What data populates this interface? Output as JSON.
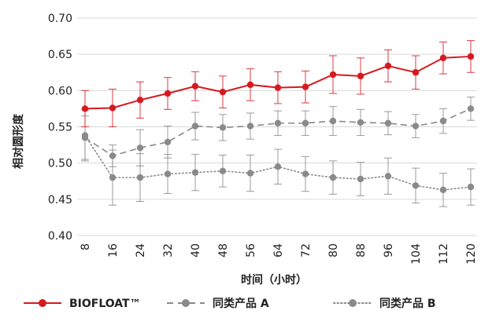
{
  "chart_data": {
    "type": "line",
    "title": "",
    "xlabel": "时间（小时）",
    "ylabel": "相对圆形度",
    "x": [
      "8",
      "16",
      "24",
      "32",
      "40",
      "48",
      "56",
      "64",
      "72",
      "80",
      "88",
      "96",
      "104",
      "112",
      "120"
    ],
    "ylim": [
      0.4,
      0.7
    ],
    "yticks": [
      "0.40",
      "0.45",
      "0.50",
      "0.55",
      "0.60",
      "0.65",
      "0.70"
    ],
    "grid": "horizontal",
    "legend_position": "bottom",
    "error_bars": true,
    "series": [
      {
        "name": "BIOFLOAT™",
        "color": "#d71920",
        "line_style": "solid",
        "values": [
          0.575,
          0.576,
          0.587,
          0.596,
          0.606,
          0.598,
          0.608,
          0.604,
          0.605,
          0.622,
          0.62,
          0.634,
          0.625,
          0.645,
          0.647
        ],
        "errors": [
          0.025,
          0.026,
          0.025,
          0.022,
          0.02,
          0.022,
          0.022,
          0.022,
          0.022,
          0.026,
          0.025,
          0.022,
          0.023,
          0.022,
          0.022
        ]
      },
      {
        "name": "同类产品 A",
        "color": "#8a8a8a",
        "line_style": "dashed",
        "values": [
          0.535,
          0.51,
          0.521,
          0.529,
          0.551,
          0.549,
          0.551,
          0.555,
          0.555,
          0.558,
          0.556,
          0.555,
          0.551,
          0.558,
          0.575
        ],
        "errors": [
          0.03,
          0.015,
          0.025,
          0.022,
          0.019,
          0.018,
          0.018,
          0.017,
          0.017,
          0.02,
          0.018,
          0.016,
          0.016,
          0.017,
          0.016
        ]
      },
      {
        "name": "同类产品 B",
        "color": "#8a8a8a",
        "line_style": "dotted",
        "values": [
          0.538,
          0.48,
          0.48,
          0.485,
          0.487,
          0.489,
          0.486,
          0.495,
          0.485,
          0.48,
          0.478,
          0.482,
          0.469,
          0.463,
          0.467
        ],
        "errors": [
          0.035,
          0.038,
          0.033,
          0.027,
          0.025,
          0.022,
          0.025,
          0.024,
          0.024,
          0.023,
          0.023,
          0.025,
          0.024,
          0.023,
          0.025
        ]
      }
    ]
  }
}
